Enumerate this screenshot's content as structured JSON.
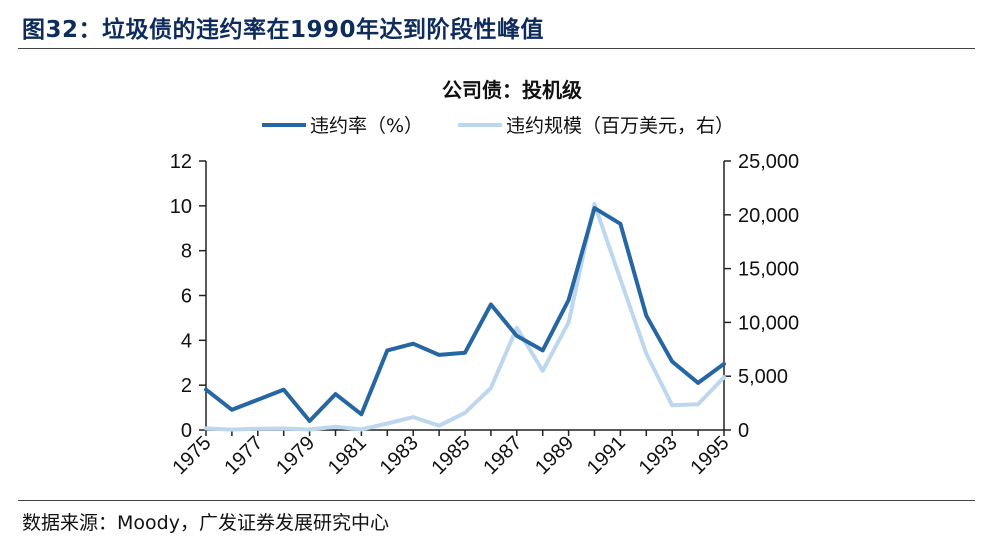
{
  "figure": {
    "title": "图32：垃圾债的违约率在1990年达到阶段性峰值",
    "source": "数据来源：Moody，广发证券发展研究中心"
  },
  "colors": {
    "title": "#0d2c5c",
    "series_rate": "#2566a3",
    "series_amount": "#bdd7ee"
  },
  "chart_data": {
    "type": "line",
    "title": "公司债：投机级",
    "x": [
      1975,
      1976,
      1977,
      1978,
      1979,
      1980,
      1981,
      1982,
      1983,
      1984,
      1985,
      1986,
      1987,
      1988,
      1989,
      1990,
      1991,
      1992,
      1993,
      1994,
      1995
    ],
    "x_tick_labels": [
      "1975",
      "1977",
      "1979",
      "1981",
      "1983",
      "1985",
      "1987",
      "1989",
      "1991",
      "1993",
      "1995"
    ],
    "y_left": {
      "range": [
        0,
        12
      ],
      "ticks": [
        "0",
        "2",
        "4",
        "6",
        "8",
        "10",
        "12"
      ]
    },
    "y_right": {
      "range": [
        0,
        25000
      ],
      "ticks": [
        "0",
        "5,000",
        "10,000",
        "15,000",
        "20,000",
        "25,000"
      ]
    },
    "legend_position": "top-center",
    "series": [
      {
        "name": "违约率（%）",
        "axis": "left",
        "values": [
          1.8,
          0.9,
          1.35,
          1.8,
          0.4,
          1.6,
          0.7,
          3.55,
          3.85,
          3.35,
          3.45,
          5.6,
          4.2,
          3.55,
          5.8,
          9.9,
          9.2,
          5.1,
          3.05,
          2.1,
          2.95
        ]
      },
      {
        "name": "违约规模（百万美元，右）",
        "axis": "right",
        "values": [
          150,
          40,
          120,
          140,
          50,
          300,
          50,
          600,
          1200,
          400,
          1600,
          3900,
          9500,
          5500,
          10000,
          21000,
          14000,
          7100,
          2300,
          2400,
          4900
        ]
      }
    ]
  }
}
